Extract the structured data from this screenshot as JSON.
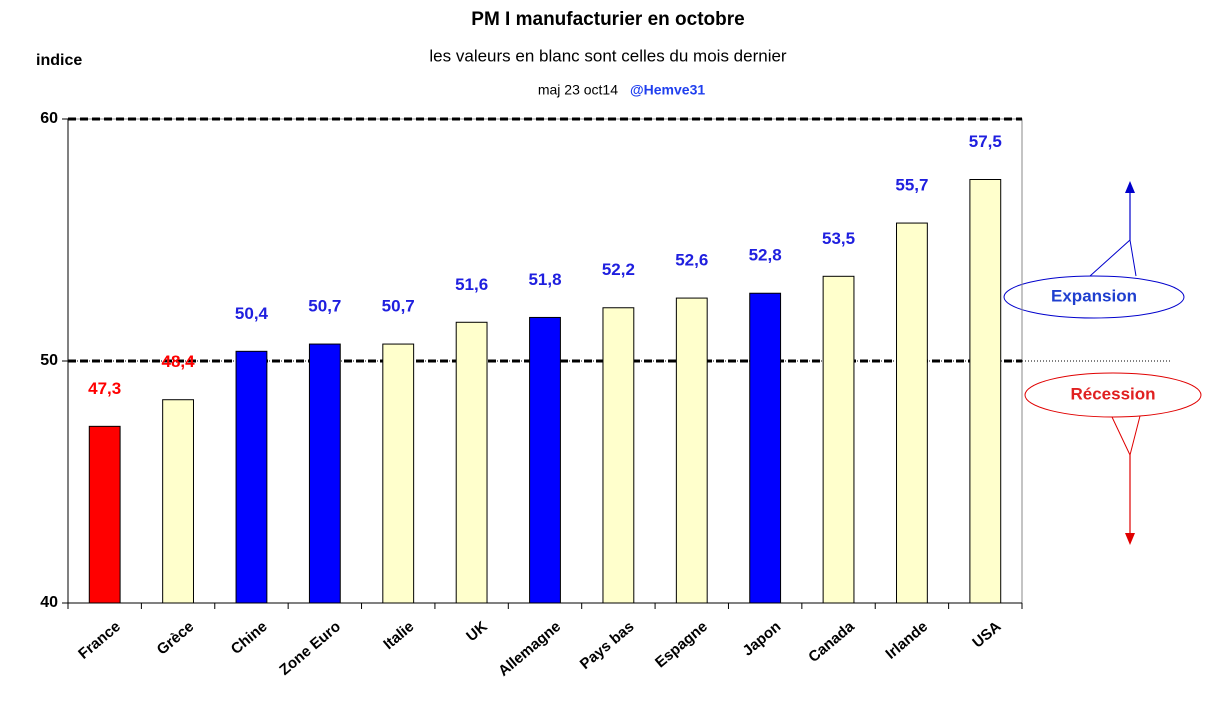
{
  "chart_data": {
    "type": "bar",
    "title": "PM I manufacturier en octobre",
    "subtitle": "les valeurs en blanc sont celles du mois dernier",
    "note": "maj 23 oct14",
    "author": "@Hemve31",
    "ylabel": "indice",
    "annotations": [
      "Expansion",
      "Récession"
    ],
    "categories": [
      "France",
      "Grèce",
      "Chine",
      "Zone Euro",
      "Italie",
      "UK",
      "Allemagne",
      "Pays bas",
      "Espagne",
      "Japon",
      "Canada",
      "Irlande",
      "USA"
    ],
    "values": [
      47.3,
      48.4,
      50.4,
      50.7,
      50.7,
      51.6,
      51.8,
      52.2,
      52.6,
      52.8,
      53.5,
      55.7,
      57.5
    ],
    "value_labels": [
      "47,3",
      "48,4",
      "50,4",
      "50,7",
      "50,7",
      "51,6",
      "51,8",
      "52,2",
      "52,6",
      "52,8",
      "53,5",
      "55,7",
      "57,5"
    ],
    "colors": [
      "#ff0000",
      "#ffffcc",
      "#0000ff",
      "#0000ff",
      "#ffffcc",
      "#ffffcc",
      "#0000ff",
      "#ffffcc",
      "#ffffcc",
      "#0000ff",
      "#ffffcc",
      "#ffffcc",
      "#ffffcc"
    ],
    "label_colors": [
      "#ff0000",
      "#ff0000",
      "#1f1fdf",
      "#1f1fdf",
      "#1f1fdf",
      "#1f1fdf",
      "#1f1fdf",
      "#1f1fdf",
      "#1f1fdf",
      "#1f1fdf",
      "#1f1fdf",
      "#1f1fdf",
      "#1f1fdf"
    ],
    "ylim": [
      40,
      60
    ],
    "yticks": [
      40,
      50,
      60
    ]
  }
}
